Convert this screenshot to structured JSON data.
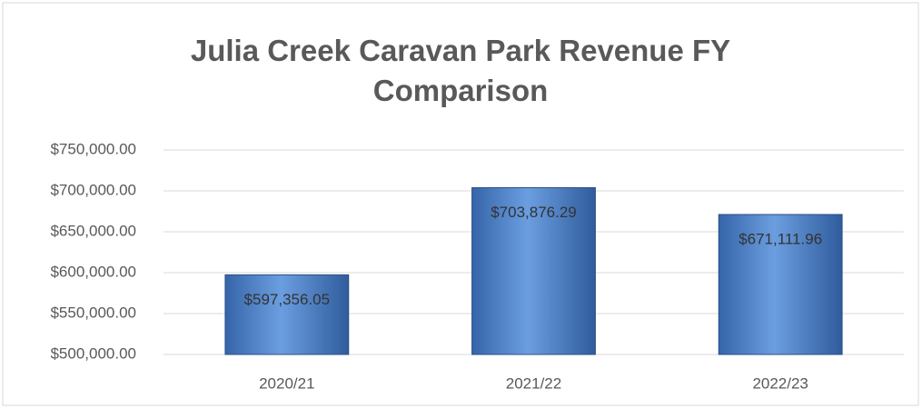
{
  "chart_data": {
    "type": "bar",
    "title": "Julia Creek Caravan Park Revenue FY Comparison",
    "categories": [
      "2020/21",
      "2021/22",
      "2022/23"
    ],
    "values": [
      597356.05,
      703876.29,
      671111.96
    ],
    "value_labels": [
      "$597,356.05",
      "$703,876.29",
      "$671,111.96"
    ],
    "color": "#4f81c7",
    "ylim": [
      500000,
      750000
    ],
    "yticks": [
      {
        "value": 500000,
        "label": "$500,000.00"
      },
      {
        "value": 550000,
        "label": "$550,000.00"
      },
      {
        "value": 600000,
        "label": "$600,000.00"
      },
      {
        "value": 650000,
        "label": "$650,000.00"
      },
      {
        "value": 700000,
        "label": "$700,000.00"
      },
      {
        "value": 750000,
        "label": "$750,000.00"
      }
    ],
    "grid": true
  }
}
